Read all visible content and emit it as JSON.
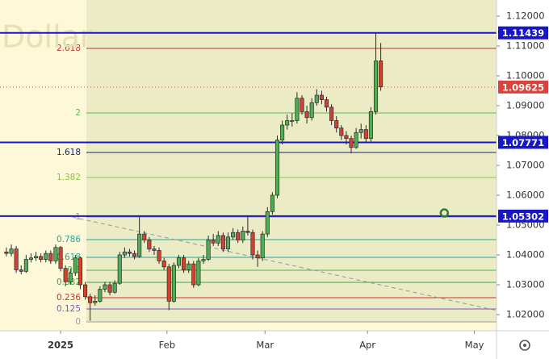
{
  "chart_data": {
    "type": "candlestick",
    "watermark": "Dollar",
    "up_color": "#4fae55",
    "down_color": "#d2432f",
    "candles": {
      "open": [
        1.041,
        1.0405,
        1.042,
        1.035,
        1.0345,
        1.0385,
        1.039,
        1.0395,
        1.0385,
        1.0405,
        1.038,
        1.0425,
        1.0355,
        1.031,
        1.034,
        1.039,
        1.03,
        1.026,
        1.024,
        1.0245,
        1.0285,
        1.03,
        1.0275,
        1.0305,
        1.04,
        1.041,
        1.0405,
        1.0395,
        1.047,
        1.045,
        1.042,
        1.0415,
        1.038,
        1.036,
        1.0245,
        1.0365,
        1.039,
        1.035,
        1.037,
        1.03,
        1.038,
        1.0385,
        1.045,
        1.044,
        1.0465,
        1.042,
        1.046,
        1.0475,
        1.045,
        1.048,
        1.0475,
        1.04,
        1.039,
        1.047,
        1.0545,
        1.06,
        1.0785,
        1.0835,
        1.085,
        1.085,
        1.0925,
        1.088,
        1.086,
        1.091,
        1.0935,
        1.092,
        1.0895,
        1.085,
        1.0825,
        1.08,
        1.079,
        1.076,
        1.081,
        1.082,
        1.079,
        1.088,
        1.105
      ],
      "high": [
        1.0425,
        1.0435,
        1.043,
        1.0365,
        1.04,
        1.0405,
        1.041,
        1.0405,
        1.0415,
        1.0415,
        1.0435,
        1.043,
        1.0365,
        1.0355,
        1.04,
        1.0395,
        1.031,
        1.027,
        1.0265,
        1.0295,
        1.031,
        1.031,
        1.0315,
        1.041,
        1.0425,
        1.042,
        1.0415,
        1.053,
        1.048,
        1.046,
        1.043,
        1.0425,
        1.039,
        1.037,
        1.0375,
        1.04,
        1.04,
        1.038,
        1.038,
        1.039,
        1.04,
        1.0465,
        1.047,
        1.048,
        1.0475,
        1.0475,
        1.049,
        1.0485,
        1.0495,
        1.053,
        1.0485,
        1.0415,
        1.048,
        1.056,
        1.061,
        1.08,
        1.085,
        1.087,
        1.0875,
        1.0945,
        1.0935,
        1.09,
        1.0925,
        1.0955,
        1.095,
        1.093,
        1.0905,
        1.0865,
        1.0835,
        1.0815,
        1.08,
        1.0825,
        1.084,
        1.0835,
        1.0895,
        1.1144,
        1.111
      ],
      "low": [
        1.0395,
        1.0395,
        1.034,
        1.0335,
        1.034,
        1.0375,
        1.038,
        1.0375,
        1.0375,
        1.037,
        1.037,
        1.0345,
        1.0295,
        1.03,
        1.033,
        1.0285,
        1.025,
        1.018,
        1.023,
        1.024,
        1.0275,
        1.0265,
        1.027,
        1.03,
        1.039,
        1.0395,
        1.0385,
        1.039,
        1.044,
        1.041,
        1.04,
        1.037,
        1.035,
        1.0215,
        1.024,
        1.0355,
        1.034,
        1.034,
        1.029,
        1.0295,
        1.037,
        1.038,
        1.043,
        1.043,
        1.041,
        1.041,
        1.045,
        1.044,
        1.044,
        1.0465,
        1.0385,
        1.036,
        1.038,
        1.046,
        1.0535,
        1.059,
        1.077,
        1.082,
        1.083,
        1.084,
        1.087,
        1.084,
        1.085,
        1.09,
        1.0905,
        1.088,
        1.0835,
        1.081,
        1.0785,
        1.077,
        1.074,
        1.0755,
        1.079,
        1.0775,
        1.078,
        1.087,
        1.095
      ],
      "close": [
        1.0405,
        1.042,
        1.035,
        1.0345,
        1.0385,
        1.039,
        1.0395,
        1.0385,
        1.0405,
        1.038,
        1.0425,
        1.0355,
        1.031,
        1.034,
        1.039,
        1.03,
        1.026,
        1.024,
        1.0245,
        1.0285,
        1.03,
        1.0275,
        1.0305,
        1.04,
        1.041,
        1.0405,
        1.0395,
        1.047,
        1.045,
        1.042,
        1.0415,
        1.038,
        1.036,
        1.0245,
        1.0365,
        1.039,
        1.035,
        1.037,
        1.03,
        1.038,
        1.0385,
        1.045,
        1.044,
        1.0465,
        1.042,
        1.046,
        1.0475,
        1.045,
        1.048,
        1.0475,
        1.04,
        1.039,
        1.047,
        1.0545,
        1.06,
        1.0785,
        1.0835,
        1.085,
        1.085,
        1.0925,
        1.088,
        1.086,
        1.091,
        1.0935,
        1.092,
        1.0895,
        1.085,
        1.0825,
        1.08,
        1.079,
        1.076,
        1.081,
        1.082,
        1.079,
        1.088,
        1.105,
        1.0963
      ]
    },
    "xlim": [
      -1.3,
      99.5
    ],
    "xticks": [
      {
        "value": 11,
        "label": "2025"
      },
      {
        "value": 32.6,
        "label": "Feb"
      },
      {
        "value": 52.5,
        "label": "Mar"
      },
      {
        "value": 73.3,
        "label": "Apr"
      },
      {
        "value": 95,
        "label": "May"
      }
    ],
    "ylim": [
      1.0146,
      1.1254
    ],
    "yticks": [
      {
        "value": 1.02,
        "label": "1.02000"
      },
      {
        "value": 1.03,
        "label": "1.03000"
      },
      {
        "value": 1.04,
        "label": "1.04000"
      },
      {
        "value": 1.05,
        "label": "1.05000"
      },
      {
        "value": 1.06,
        "label": "1.06000"
      },
      {
        "value": 1.07,
        "label": "1.07000"
      },
      {
        "value": 1.08,
        "label": "1.08000"
      },
      {
        "value": 1.09,
        "label": "1.09000"
      },
      {
        "value": 1.1,
        "label": "1.10000"
      },
      {
        "value": 1.11,
        "label": "1.11000"
      },
      {
        "value": 1.12,
        "label": "1.12000"
      }
    ],
    "levels": [
      1.11439,
      1.07771,
      1.05302
    ],
    "level_color": "#1717c8",
    "current_price": 1.09625,
    "current_color": "#d9433a",
    "fib": {
      "ratios": [
        2.618,
        2,
        1.618,
        1.382,
        1,
        0.786,
        0.618,
        0.5,
        0.382,
        0.236,
        0.125,
        0
      ],
      "prices": [
        1.10919,
        1.08757,
        1.07432,
        1.06595,
        1.0527,
        1.04514,
        1.03919,
        1.03486,
        1.03081,
        1.02568,
        1.02189,
        1.01757
      ],
      "colors": [
        "#c0392b",
        "#5cb85c",
        "#1a237e",
        "#8bc34a",
        "#999999",
        "#26a69a",
        "#26a69a",
        "#4caf50",
        "#43a047",
        "#d32f2f",
        "#7e57c2",
        "#9e9e9e"
      ]
    },
    "trendline": {
      "x": [
        13.4,
        99.5
      ],
      "y": [
        1.0527,
        1.0214
      ]
    },
    "marker": {
      "x": 88.9,
      "y": 1.05405,
      "color": "#2e7d32"
    }
  }
}
